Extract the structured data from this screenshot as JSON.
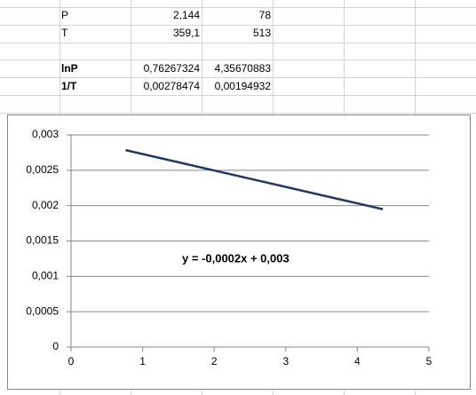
{
  "sheet": {
    "group1": [
      [
        "P",
        "2,144",
        "78"
      ],
      [
        "T",
        "359,1",
        "513"
      ]
    ],
    "group2": [
      [
        "lnP",
        "0,76267324",
        "4,35670883"
      ],
      [
        "1/T",
        "0,00278474",
        "0,00194932"
      ]
    ]
  },
  "chart_data": {
    "type": "line",
    "x": [
      0.76267324,
      4.35670883
    ],
    "values": [
      0.00278474,
      0.00194932
    ],
    "color": "#1f3864",
    "annotation": "y = -0,0002x + 0,003",
    "xlim": [
      0,
      5
    ],
    "xticks": [
      0,
      1,
      2,
      3,
      4,
      5
    ],
    "ylim": [
      0,
      0.003
    ],
    "yticks": [
      {
        "value": 0,
        "label": "0"
      },
      {
        "value": 0.0005,
        "label": "0,0005"
      },
      {
        "value": 0.001,
        "label": "0,001"
      },
      {
        "value": 0.0015,
        "label": "0,0015"
      },
      {
        "value": 0.002,
        "label": "0,002"
      },
      {
        "value": 0.0025,
        "label": "0,0025"
      },
      {
        "value": 0.003,
        "label": "0,003"
      }
    ],
    "grid": true
  }
}
